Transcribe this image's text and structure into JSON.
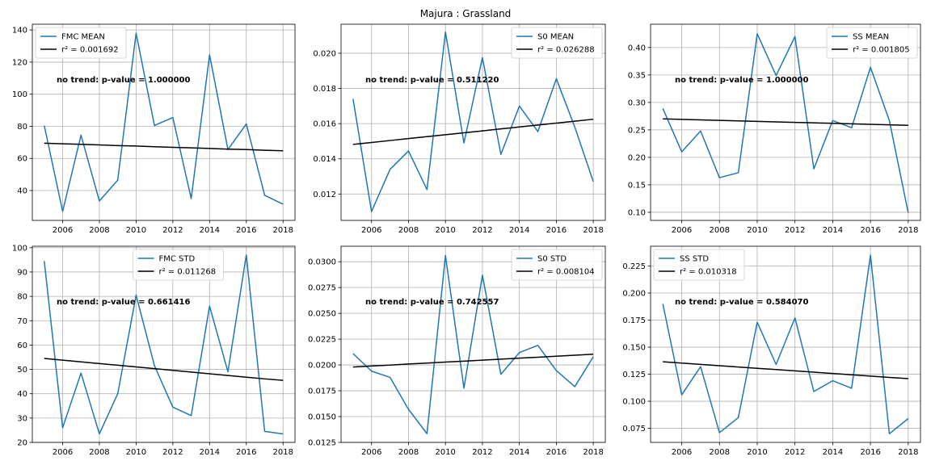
{
  "title": "Majura : Grassland",
  "chart_data": [
    {
      "type": "line",
      "x": [
        2005,
        2006,
        2007,
        2008,
        2009,
        2010,
        2011,
        2012,
        2013,
        2014,
        2015,
        2016,
        2017,
        2018
      ],
      "series": [
        {
          "name": "FMC MEAN",
          "color": "#1f77b4",
          "values": [
            80.5,
            27,
            74.5,
            33.5,
            46.5,
            138,
            80.5,
            85.5,
            35,
            124.5,
            65.5,
            81.5,
            37,
            31.5
          ]
        },
        {
          "name": "r² = 0.001692",
          "color": "#000000",
          "values": [
            69.5,
            69.1,
            68.8,
            68.4,
            68.0,
            67.7,
            67.3,
            66.9,
            66.6,
            66.2,
            65.8,
            65.5,
            65.1,
            64.8
          ]
        }
      ],
      "annotation": "no trend: p-value = 1.000000",
      "xticks": [
        "2006",
        "2008",
        "2010",
        "2012",
        "2014",
        "2016",
        "2018"
      ],
      "yticks": [
        "40",
        "60",
        "80",
        "100",
        "120",
        "140"
      ],
      "xlim": [
        2004.35,
        2018.65
      ],
      "ylim": [
        21.4,
        143.6
      ],
      "legend": "top-left",
      "grid": true
    },
    {
      "type": "line",
      "x": [
        2005,
        2006,
        2007,
        2008,
        2009,
        2010,
        2011,
        2012,
        2013,
        2014,
        2015,
        2016,
        2017,
        2018
      ],
      "series": [
        {
          "name": "S0 MEAN",
          "color": "#1f77b4",
          "values": [
            0.0174,
            0.011,
            0.0134,
            0.01445,
            0.01225,
            0.0212,
            0.0149,
            0.01975,
            0.01425,
            0.017,
            0.01555,
            0.01855,
            0.0158,
            0.0127
          ]
        },
        {
          "name": "r² = 0.026288",
          "color": "#000000",
          "values": [
            0.01482,
            0.01493,
            0.01504,
            0.01515,
            0.01526,
            0.01537,
            0.01548,
            0.01559,
            0.0157,
            0.01581,
            0.01592,
            0.01603,
            0.01614,
            0.01625
          ]
        }
      ],
      "annotation": "no trend: p-value = 0.511220",
      "xticks": [
        "2006",
        "2008",
        "2010",
        "2012",
        "2014",
        "2016",
        "2018"
      ],
      "yticks": [
        "0.012",
        "0.014",
        "0.016",
        "0.018",
        "0.020"
      ],
      "xlim": [
        2004.35,
        2018.65
      ],
      "ylim": [
        0.0105,
        0.02165
      ],
      "legend": "top-right",
      "grid": true
    },
    {
      "type": "line",
      "x": [
        2005,
        2006,
        2007,
        2008,
        2009,
        2010,
        2011,
        2012,
        2013,
        2014,
        2015,
        2016,
        2017,
        2018
      ],
      "series": [
        {
          "name": "SS MEAN",
          "color": "#1f77b4",
          "values": [
            0.289,
            0.21,
            0.248,
            0.163,
            0.172,
            0.425,
            0.349,
            0.42,
            0.179,
            0.267,
            0.254,
            0.364,
            0.267,
            0.099
          ]
        },
        {
          "name": "r² = 0.001805",
          "color": "#000000",
          "values": [
            0.27,
            0.2691,
            0.2682,
            0.2673,
            0.2664,
            0.2655,
            0.2646,
            0.2637,
            0.2628,
            0.2619,
            0.261,
            0.2601,
            0.2592,
            0.2583
          ]
        }
      ],
      "annotation": "no trend: p-value = 1.000000",
      "xticks": [
        "2006",
        "2008",
        "2010",
        "2012",
        "2014",
        "2016",
        "2018"
      ],
      "yticks": [
        "0.10",
        "0.15",
        "0.20",
        "0.25",
        "0.30",
        "0.35",
        "0.40"
      ],
      "xlim": [
        2004.35,
        2018.65
      ],
      "ylim": [
        0.0852,
        0.4424
      ],
      "legend": "top-right",
      "grid": true
    },
    {
      "type": "line",
      "x": [
        2005,
        2006,
        2007,
        2008,
        2009,
        2010,
        2011,
        2012,
        2013,
        2014,
        2015,
        2016,
        2017,
        2018
      ],
      "series": [
        {
          "name": "FMC STD",
          "color": "#1f77b4",
          "values": [
            94.5,
            26,
            48.5,
            23.5,
            40,
            80.5,
            51.5,
            34.5,
            31,
            76,
            49,
            97,
            24.5,
            23.5
          ]
        },
        {
          "name": "r² = 0.011268",
          "color": "#000000",
          "values": [
            54.5,
            53.8,
            53.1,
            52.4,
            51.7,
            51.0,
            50.3,
            49.6,
            48.9,
            48.2,
            47.5,
            46.8,
            46.1,
            45.5
          ]
        }
      ],
      "annotation": "no trend: p-value = 0.661416",
      "xticks": [
        "2006",
        "2008",
        "2010",
        "2012",
        "2014",
        "2016",
        "2018"
      ],
      "yticks": [
        "20",
        "30",
        "40",
        "50",
        "60",
        "70",
        "80",
        "90",
        "100"
      ],
      "xlim": [
        2004.35,
        2018.65
      ],
      "ylim": [
        20.0,
        100.6
      ],
      "legend": "top-center",
      "grid": true
    },
    {
      "type": "line",
      "x": [
        2005,
        2006,
        2007,
        2008,
        2009,
        2010,
        2011,
        2012,
        2013,
        2014,
        2015,
        2016,
        2017,
        2018
      ],
      "series": [
        {
          "name": "S0 STD",
          "color": "#1f77b4",
          "values": [
            0.0211,
            0.0194,
            0.0188,
            0.0157,
            0.01335,
            0.0306,
            0.01775,
            0.0287,
            0.0191,
            0.0212,
            0.0219,
            0.01945,
            0.0179,
            0.0208
          ]
        },
        {
          "name": "r² = 0.008104",
          "color": "#000000",
          "values": [
            0.0198,
            0.0199,
            0.01999,
            0.02009,
            0.02018,
            0.02028,
            0.02037,
            0.02047,
            0.02056,
            0.02066,
            0.02075,
            0.02085,
            0.02094,
            0.02104
          ]
        }
      ],
      "annotation": "no trend: p-value = 0.742557",
      "xticks": [
        "2006",
        "2008",
        "2010",
        "2012",
        "2014",
        "2016",
        "2018"
      ],
      "yticks": [
        "0.0125",
        "0.0150",
        "0.0175",
        "0.0200",
        "0.0225",
        "0.0250",
        "0.0275",
        "0.0300"
      ],
      "xlim": [
        2004.35,
        2018.65
      ],
      "ylim": [
        0.0125,
        0.0315
      ],
      "legend": "top-right",
      "grid": true
    },
    {
      "type": "line",
      "x": [
        2005,
        2006,
        2007,
        2008,
        2009,
        2010,
        2011,
        2012,
        2013,
        2014,
        2015,
        2016,
        2017,
        2018
      ],
      "series": [
        {
          "name": "SS STD",
          "color": "#1f77b4",
          "values": [
            0.19,
            0.106,
            0.132,
            0.071,
            0.085,
            0.173,
            0.134,
            0.177,
            0.109,
            0.119,
            0.112,
            0.235,
            0.07,
            0.084
          ]
        },
        {
          "name": "r² = 0.010318",
          "color": "#000000",
          "values": [
            0.1365,
            0.1353,
            0.1341,
            0.1329,
            0.1317,
            0.1305,
            0.1293,
            0.1281,
            0.1269,
            0.1257,
            0.1245,
            0.1233,
            0.1221,
            0.1209
          ]
        }
      ],
      "annotation": "no trend: p-value = 0.584070",
      "xticks": [
        "2006",
        "2008",
        "2010",
        "2012",
        "2014",
        "2016",
        "2018"
      ],
      "yticks": [
        "0.075",
        "0.100",
        "0.125",
        "0.150",
        "0.175",
        "0.200",
        "0.225"
      ],
      "xlim": [
        2004.35,
        2018.65
      ],
      "ylim": [
        0.062,
        0.2433
      ],
      "legend": "top-left",
      "grid": true
    }
  ]
}
